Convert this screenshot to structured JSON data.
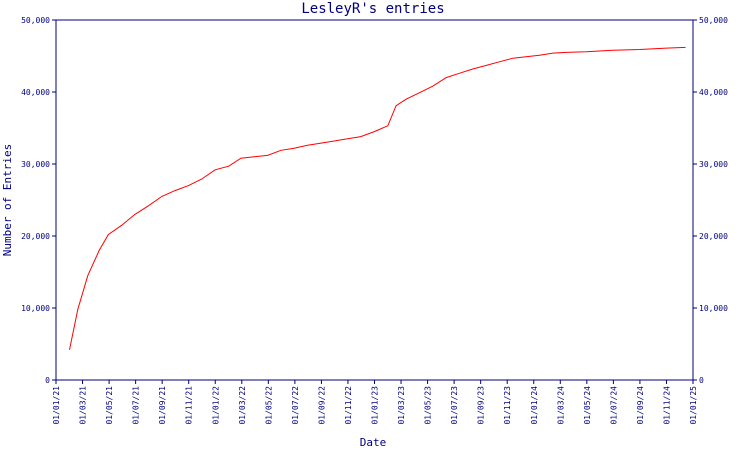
{
  "chart_data": {
    "type": "line",
    "title": "LesleyR's entries",
    "xlabel": "Date",
    "ylabel": "Number of Entries",
    "x_tick_labels": [
      "01/01/21",
      "01/03/21",
      "01/05/21",
      "01/07/21",
      "01/09/21",
      "01/11/21",
      "01/01/22",
      "01/03/22",
      "01/05/22",
      "01/07/22",
      "01/09/22",
      "01/11/22",
      "01/01/23",
      "01/03/23",
      "01/05/23",
      "01/07/23",
      "01/09/23",
      "01/11/23",
      "01/01/24",
      "01/03/24",
      "01/05/24",
      "01/07/24",
      "01/09/24",
      "01/11/24",
      "01/01/25"
    ],
    "y_tick_labels": [
      "0",
      "10,000",
      "20,000",
      "30,000",
      "40,000",
      "50,000"
    ],
    "y_tick_values": [
      0,
      10000,
      20000,
      30000,
      40000,
      50000
    ],
    "ylim": [
      0,
      50000
    ],
    "xlim": [
      "2021-01-01",
      "2025-01-01"
    ],
    "grid": false,
    "y_axis_right_labels": true,
    "colors": {
      "axis": "#000080",
      "series": "#ff0000"
    },
    "series": [
      {
        "values": [
          {
            "x": "2021-02-01",
            "y": 4200
          },
          {
            "x": "2021-02-20",
            "y": 9800
          },
          {
            "x": "2021-03-15",
            "y": 14500
          },
          {
            "x": "2021-04-10",
            "y": 18000
          },
          {
            "x": "2021-05-01",
            "y": 20200
          },
          {
            "x": "2021-06-01",
            "y": 21500
          },
          {
            "x": "2021-07-01",
            "y": 23000
          },
          {
            "x": "2021-08-01",
            "y": 24200
          },
          {
            "x": "2021-09-01",
            "y": 25500
          },
          {
            "x": "2021-10-01",
            "y": 26300
          },
          {
            "x": "2021-11-01",
            "y": 27000
          },
          {
            "x": "2021-12-01",
            "y": 27900
          },
          {
            "x": "2022-01-01",
            "y": 29200
          },
          {
            "x": "2022-02-01",
            "y": 29700
          },
          {
            "x": "2022-03-01",
            "y": 30800
          },
          {
            "x": "2022-04-01",
            "y": 31000
          },
          {
            "x": "2022-05-01",
            "y": 31200
          },
          {
            "x": "2022-06-01",
            "y": 31900
          },
          {
            "x": "2022-07-01",
            "y": 32200
          },
          {
            "x": "2022-08-01",
            "y": 32600
          },
          {
            "x": "2022-09-01",
            "y": 32900
          },
          {
            "x": "2022-10-01",
            "y": 33200
          },
          {
            "x": "2022-11-01",
            "y": 33500
          },
          {
            "x": "2022-12-01",
            "y": 33800
          },
          {
            "x": "2023-01-01",
            "y": 34500
          },
          {
            "x": "2023-02-01",
            "y": 35300
          },
          {
            "x": "2023-02-20",
            "y": 38100
          },
          {
            "x": "2023-03-15",
            "y": 39000
          },
          {
            "x": "2023-04-15",
            "y": 39900
          },
          {
            "x": "2023-05-15",
            "y": 40800
          },
          {
            "x": "2023-06-15",
            "y": 42000
          },
          {
            "x": "2023-07-15",
            "y": 42600
          },
          {
            "x": "2023-08-15",
            "y": 43200
          },
          {
            "x": "2023-09-15",
            "y": 43700
          },
          {
            "x": "2023-10-15",
            "y": 44200
          },
          {
            "x": "2023-11-15",
            "y": 44700
          },
          {
            "x": "2023-12-15",
            "y": 44900
          },
          {
            "x": "2024-01-15",
            "y": 45100
          },
          {
            "x": "2024-02-15",
            "y": 45400
          },
          {
            "x": "2024-03-15",
            "y": 45500
          },
          {
            "x": "2024-05-01",
            "y": 45600
          },
          {
            "x": "2024-07-01",
            "y": 45800
          },
          {
            "x": "2024-09-01",
            "y": 45900
          },
          {
            "x": "2024-11-01",
            "y": 46100
          },
          {
            "x": "2024-12-15",
            "y": 46200
          }
        ]
      }
    ]
  }
}
